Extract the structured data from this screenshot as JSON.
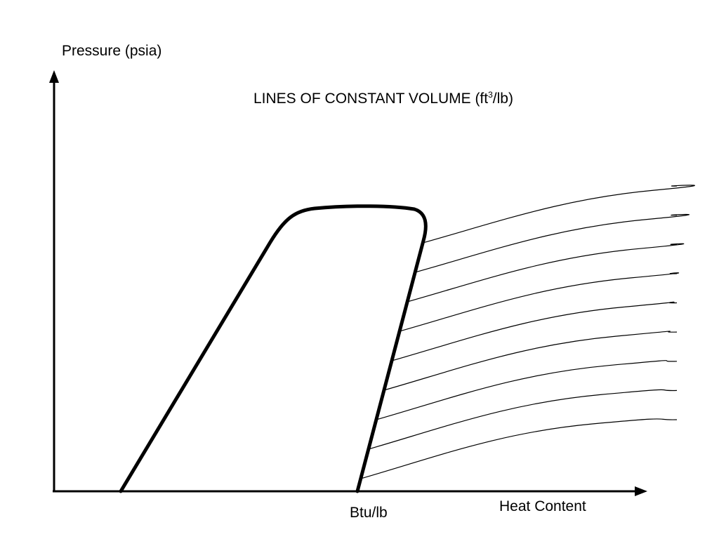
{
  "diagram": {
    "y_axis_label": "Pressure (psia)",
    "x_axis_label": "Heat Content",
    "unit_label": "Btu/lb",
    "title": {
      "prefix": "LINES OF CONSTANT VOLUME (ft",
      "superscript": "3",
      "suffix": "/lb)"
    },
    "constant_volume_line_count": 9,
    "colors": {
      "ink": "#000000",
      "background": "#ffffff"
    }
  }
}
